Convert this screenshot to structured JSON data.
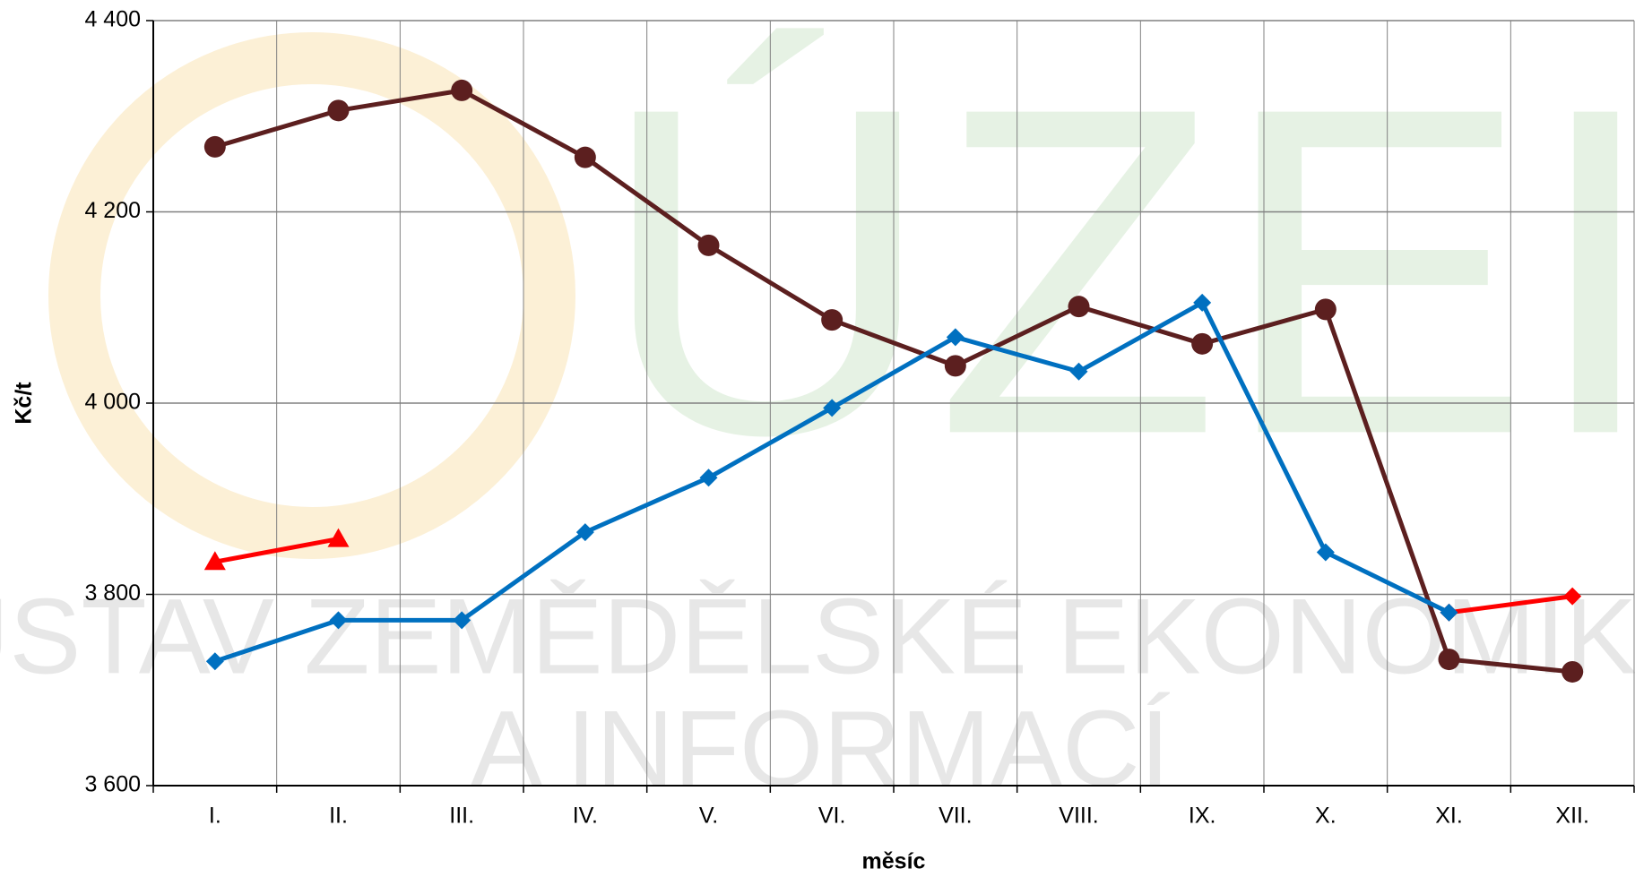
{
  "chart_data": {
    "type": "line",
    "x_label": "měsíc",
    "y_label": "Kč/t",
    "watermark": [
      "ÚZEI",
      "ÚSTAV ZEMĚDĚLSKÉ EKONOMIKY",
      "A INFORMACÍ"
    ],
    "categories": [
      "I.",
      "II.",
      "III.",
      "IV.",
      "V.",
      "VI.",
      "VII.",
      "VIII.",
      "IX.",
      "X.",
      "XI.",
      "XII."
    ],
    "series": [
      {
        "color": "#5c1f1f",
        "marker": "circle",
        "values": [
          4268,
          4306,
          4327,
          4257,
          4165,
          4087,
          4039,
          4101,
          4062,
          4098,
          3732,
          3719
        ]
      },
      {
        "color": "#ff0000",
        "marker": "triangle",
        "values": [
          3834,
          3858,
          null,
          null,
          null,
          null,
          null,
          null,
          null,
          null,
          null,
          null
        ]
      },
      {
        "color": "#ff0000",
        "marker": "diamond",
        "values": [
          null,
          null,
          null,
          null,
          null,
          null,
          null,
          null,
          null,
          null,
          3781,
          3798
        ]
      },
      {
        "color": "#0070c0",
        "marker": "diamond",
        "values": [
          3730,
          3773,
          3773,
          3865,
          3922,
          3995,
          4069,
          4033,
          4105,
          3844,
          3781,
          null
        ]
      }
    ],
    "ylim": [
      3600,
      4400
    ],
    "yticks": [
      {
        "value": 3600,
        "label": "3 600"
      },
      {
        "value": 3800,
        "label": "3 800"
      },
      {
        "value": 4000,
        "label": "4 000"
      },
      {
        "value": 4200,
        "label": "4 200"
      },
      {
        "value": 4400,
        "label": "4 400"
      }
    ],
    "grid": true
  }
}
